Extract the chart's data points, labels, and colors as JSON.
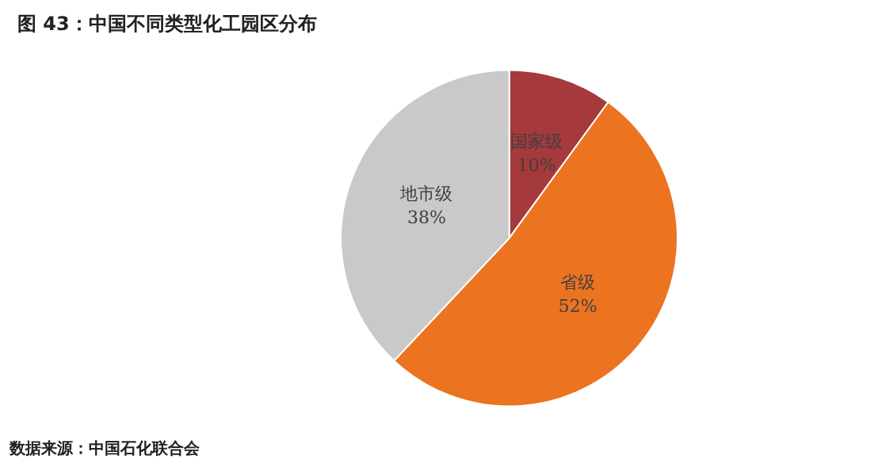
{
  "chart_data": {
    "type": "pie",
    "title": "图 43：中国不同类型化工园区分布",
    "categories": [
      "国家级",
      "省级",
      "地市级"
    ],
    "values": [
      10,
      52,
      38
    ],
    "colors": [
      "#a5393b",
      "#ec7320",
      "#c9c9c9"
    ],
    "value_labels": [
      "10%",
      "52%",
      "38%"
    ],
    "annotations": [
      "数据来源：中国石化联合会"
    ]
  }
}
